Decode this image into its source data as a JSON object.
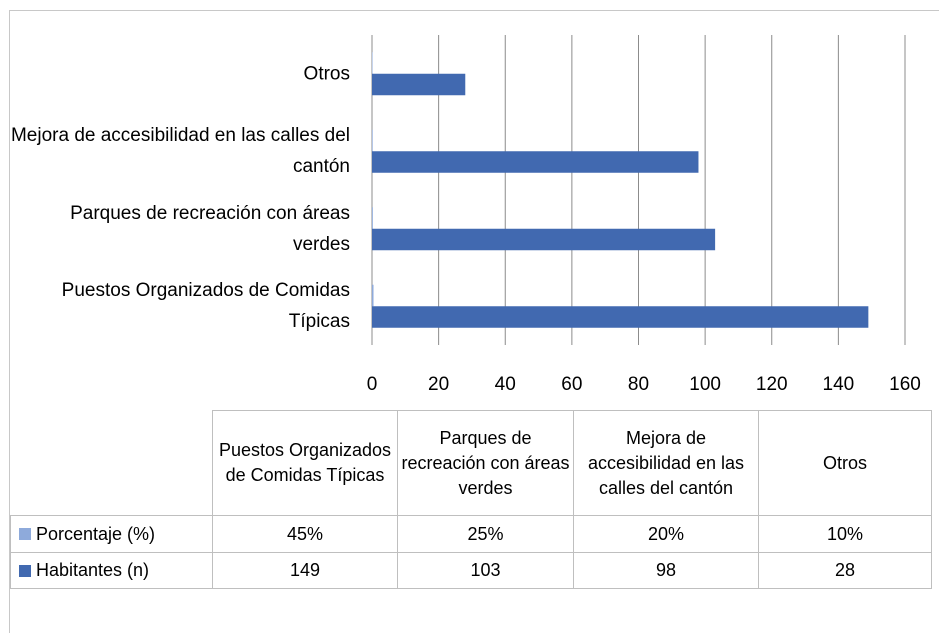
{
  "chart_data": {
    "type": "bar",
    "orientation": "horizontal",
    "categories": [
      "Puestos Organizados de Comidas Típicas",
      "Parques de recreación con áreas verdes",
      "Mejora de accesibilidad en las calles del cantón",
      "Otros"
    ],
    "series": [
      {
        "name": "Porcentaje (%)",
        "color": "#8eaadb",
        "values": [
          0.45,
          0.25,
          0.2,
          0.1
        ],
        "value_labels": [
          "45%",
          "25%",
          "20%",
          "10%"
        ]
      },
      {
        "name": "Habitantes (n)",
        "color": "#4169b0",
        "values": [
          149,
          103,
          98,
          28
        ]
      }
    ],
    "xlim": [
      0,
      160
    ],
    "xticks": [
      0,
      20,
      40,
      60,
      80,
      100,
      120,
      140,
      160
    ],
    "grid": true,
    "data_table": true
  }
}
